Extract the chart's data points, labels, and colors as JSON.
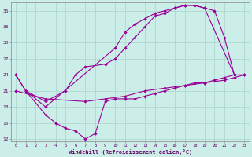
{
  "xlabel": "Windchill (Refroidissement éolien,°C)",
  "bg_color": "#cceee8",
  "line_color": "#990099",
  "grid_color": "#b0d8d0",
  "xlim": [
    -0.5,
    23.5
  ],
  "ylim": [
    11.5,
    37.5
  ],
  "xticks": [
    0,
    1,
    2,
    3,
    4,
    5,
    6,
    7,
    8,
    9,
    10,
    11,
    12,
    13,
    14,
    15,
    16,
    17,
    18,
    19,
    20,
    21,
    22,
    23
  ],
  "yticks": [
    12,
    15,
    18,
    21,
    24,
    27,
    30,
    33,
    36
  ],
  "line1_x": [
    0,
    1,
    3,
    10,
    11,
    12,
    13,
    14,
    15,
    16,
    17,
    18,
    19,
    22
  ],
  "line1_y": [
    24,
    21,
    18,
    29,
    32,
    33.5,
    34.5,
    35.5,
    36,
    36.5,
    37,
    37,
    36.5,
    24
  ],
  "line2_x": [
    0,
    1,
    3,
    5,
    6,
    7,
    9,
    10,
    11,
    12,
    13,
    14,
    15,
    16,
    17,
    18,
    19,
    20,
    21,
    22
  ],
  "line2_y": [
    24,
    21,
    19,
    21,
    24,
    25.5,
    26,
    27,
    29,
    31,
    33,
    35,
    35.5,
    36.5,
    37,
    37,
    36.5,
    36,
    31,
    24
  ],
  "line3_x": [
    0,
    3,
    7,
    9,
    11,
    13,
    15,
    17,
    19,
    21,
    22,
    23
  ],
  "line3_y": [
    21,
    19.5,
    19,
    19.5,
    20,
    21,
    21.5,
    22,
    22.5,
    23,
    23.5,
    24
  ],
  "line4_x": [
    1,
    3,
    4,
    5,
    6,
    7,
    8,
    9,
    10,
    11,
    12,
    13,
    14,
    15,
    16,
    17,
    18,
    19,
    20,
    21,
    22,
    23
  ],
  "line4_y": [
    21,
    16.5,
    15,
    14,
    13.5,
    12,
    13,
    19,
    19.5,
    19.5,
    19.5,
    20,
    20.5,
    21,
    21.5,
    22,
    22.5,
    22.5,
    23,
    23.5,
    24,
    24
  ]
}
